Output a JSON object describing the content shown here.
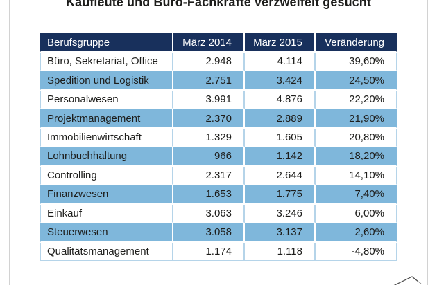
{
  "page": {
    "title": "Kaufleute und Büro-Fachkräfte verzweifelt gesucht"
  },
  "colors": {
    "header_bg": "#18305c",
    "header_text": "#ffffff",
    "row_blue": "#7fb7db",
    "white_row_divider": "#b5d4e9",
    "body_text": "#1d1d1b",
    "page_edge_line": "#d2d2d2"
  },
  "icons": {
    "logo_swoosh": "partial paper-plane swoosh mark, clipped at bottom-right edge"
  },
  "table": {
    "columns": [
      "Berufsgruppe",
      "März 2014",
      "März 2015",
      "Veränderung"
    ],
    "rows": [
      [
        "Büro, Sekretariat, Office",
        "2.948",
        "4.114",
        "39,60%"
      ],
      [
        "Spedition und Logistik",
        "2.751",
        "3.424",
        "24,50%"
      ],
      [
        "Personalwesen",
        "3.991",
        "4.876",
        "22,20%"
      ],
      [
        "Projektmanagement",
        "2.370",
        "2.889",
        "21,90%"
      ],
      [
        "Immobilienwirtschaft",
        "1.329",
        "1.605",
        "20,80%"
      ],
      [
        "Lohnbuchhaltung",
        "966",
        "1.142",
        "18,20%"
      ],
      [
        "Controlling",
        "2.317",
        "2.644",
        "14,10%"
      ],
      [
        "Finanzwesen",
        "1.653",
        "1.775",
        "7,40%"
      ],
      [
        "Einkauf",
        "3.063",
        "3.246",
        "6,00%"
      ],
      [
        "Steuerwesen",
        "3.058",
        "3.137",
        "2,60%"
      ],
      [
        "Qualitätsmanagement",
        "1.174",
        "1.118",
        "-4,80%"
      ]
    ]
  },
  "chart_data": {
    "type": "table",
    "title": "Kaufleute und Büro-Fachkräfte verzweifelt gesucht",
    "columns": [
      "Berufsgruppe",
      "März 2014",
      "März 2015",
      "Veränderung"
    ],
    "rows": [
      {
        "berufsgruppe": "Büro, Sekretariat, Office",
        "maerz_2014": 2948,
        "maerz_2015": 4114,
        "veraenderung_pct": 39.6
      },
      {
        "berufsgruppe": "Spedition und Logistik",
        "maerz_2014": 2751,
        "maerz_2015": 3424,
        "veraenderung_pct": 24.5
      },
      {
        "berufsgruppe": "Personalwesen",
        "maerz_2014": 3991,
        "maerz_2015": 4876,
        "veraenderung_pct": 22.2
      },
      {
        "berufsgruppe": "Projektmanagement",
        "maerz_2014": 2370,
        "maerz_2015": 2889,
        "veraenderung_pct": 21.9
      },
      {
        "berufsgruppe": "Immobilienwirtschaft",
        "maerz_2014": 1329,
        "maerz_2015": 1605,
        "veraenderung_pct": 20.8
      },
      {
        "berufsgruppe": "Lohnbuchhaltung",
        "maerz_2014": 966,
        "maerz_2015": 1142,
        "veraenderung_pct": 18.2
      },
      {
        "berufsgruppe": "Controlling",
        "maerz_2014": 2317,
        "maerz_2015": 2644,
        "veraenderung_pct": 14.1
      },
      {
        "berufsgruppe": "Finanzwesen",
        "maerz_2014": 1653,
        "maerz_2015": 1775,
        "veraenderung_pct": 7.4
      },
      {
        "berufsgruppe": "Einkauf",
        "maerz_2014": 3063,
        "maerz_2015": 3246,
        "veraenderung_pct": 6.0
      },
      {
        "berufsgruppe": "Steuerwesen",
        "maerz_2014": 3058,
        "maerz_2015": 3137,
        "veraenderung_pct": 2.6
      },
      {
        "berufsgruppe": "Qualitätsmanagement",
        "maerz_2014": 1174,
        "maerz_2015": 1118,
        "veraenderung_pct": -4.8
      }
    ]
  }
}
